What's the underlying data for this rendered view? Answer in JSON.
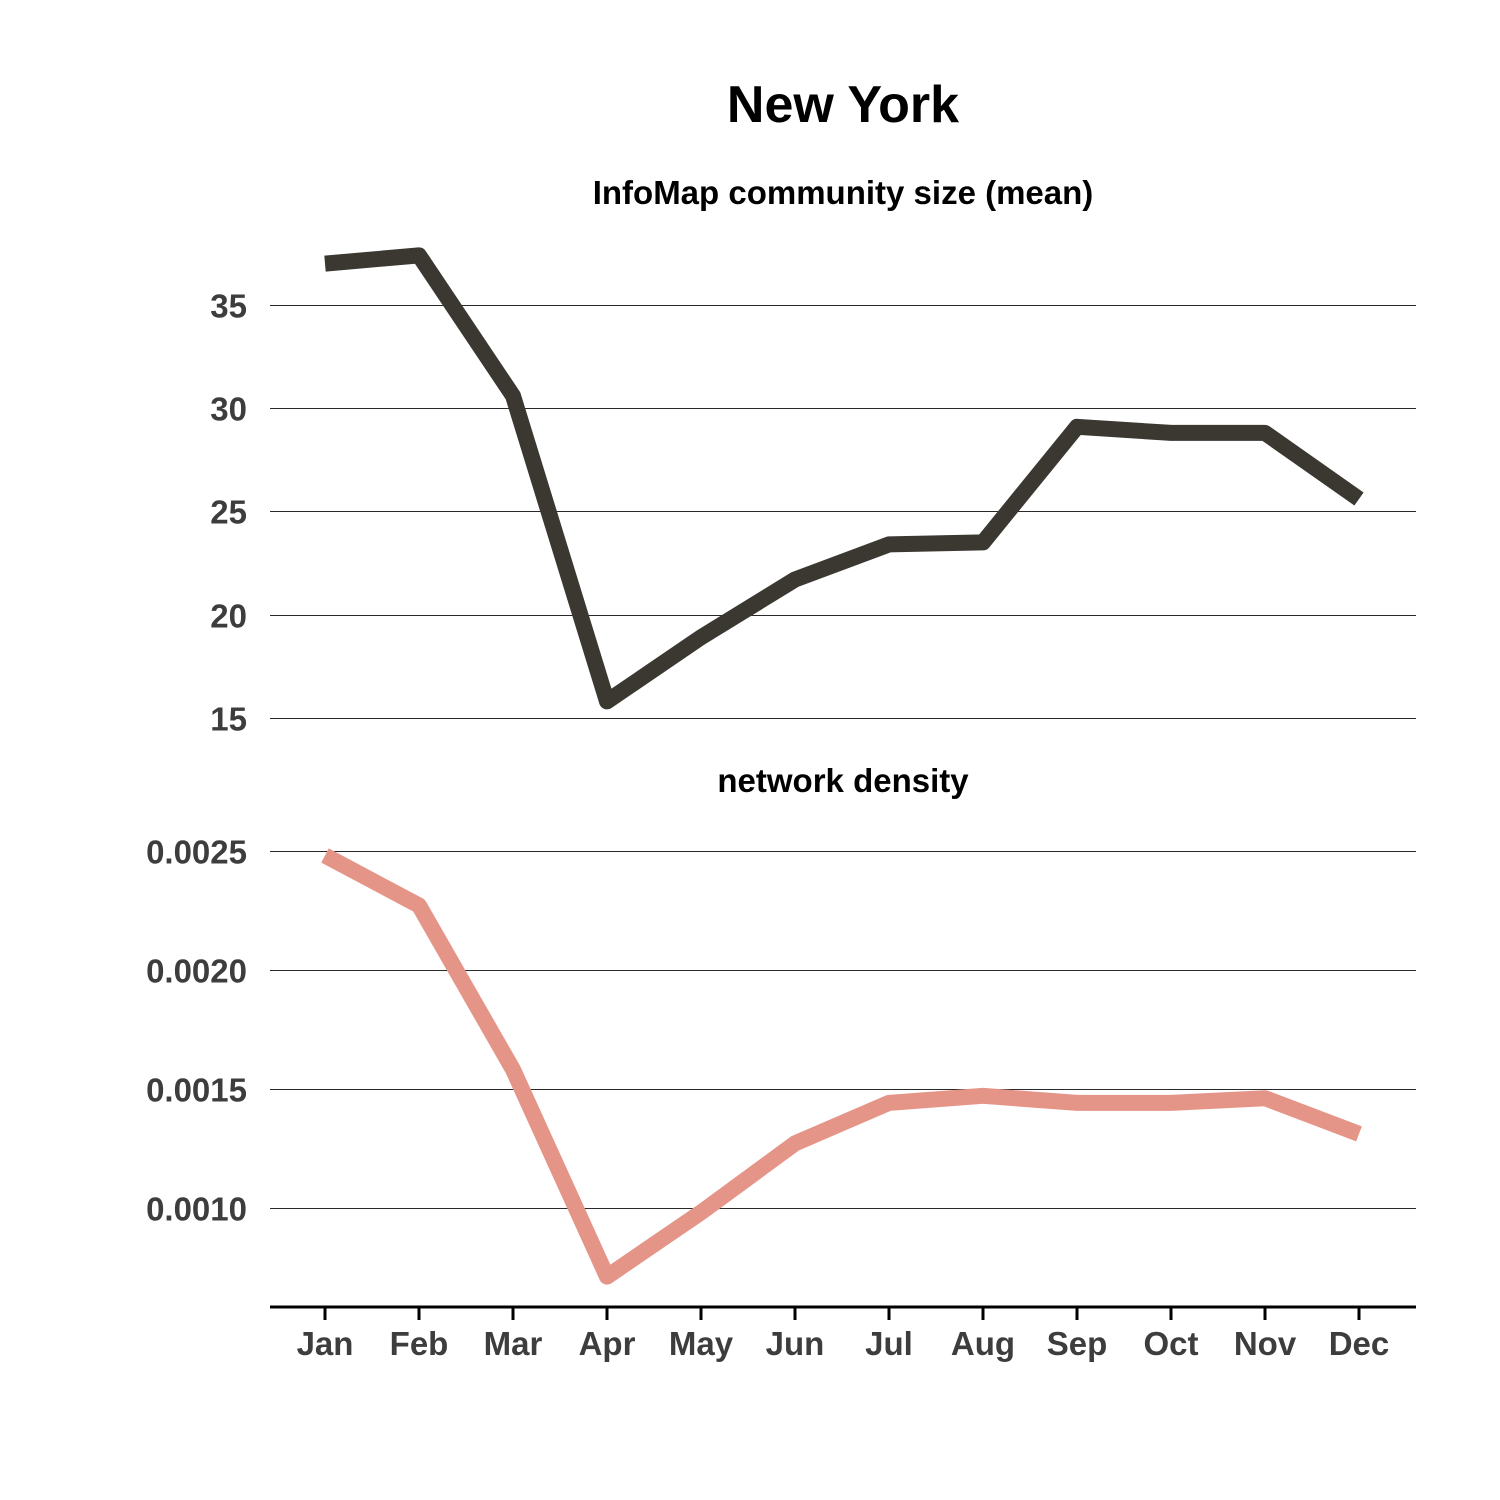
{
  "chart_data": {
    "type": "line",
    "title": "New York",
    "categories": [
      "Jan",
      "Feb",
      "Mar",
      "Apr",
      "May",
      "Jun",
      "Jul",
      "Aug",
      "Sep",
      "Oct",
      "Nov",
      "Dec"
    ],
    "panels": [
      {
        "title": "InfoMap community size (mean)",
        "color": "#3a3831",
        "yticks": [
          15,
          20,
          25,
          30,
          35
        ],
        "ytick_labels": [
          "15",
          "20",
          "25",
          "30",
          "35"
        ],
        "ylim": [
          14.8,
          38.0
        ],
        "values": [
          37.0,
          37.4,
          30.6,
          15.8,
          18.9,
          21.7,
          23.4,
          23.5,
          29.1,
          28.8,
          28.8,
          25.6
        ]
      },
      {
        "title": "network density",
        "color": "#e59488",
        "yticks": [
          0.001,
          0.0015,
          0.002,
          0.0025
        ],
        "ytick_labels": [
          "0.0010",
          "0.0015",
          "0.0020",
          "0.0025"
        ],
        "ylim": [
          0.00062,
          0.0026
        ],
        "values": [
          0.00248,
          0.00227,
          0.00158,
          0.00071,
          0.00098,
          0.00127,
          0.00144,
          0.00147,
          0.00144,
          0.00144,
          0.00146,
          0.00131
        ]
      }
    ],
    "grid": true,
    "legend": "none"
  }
}
